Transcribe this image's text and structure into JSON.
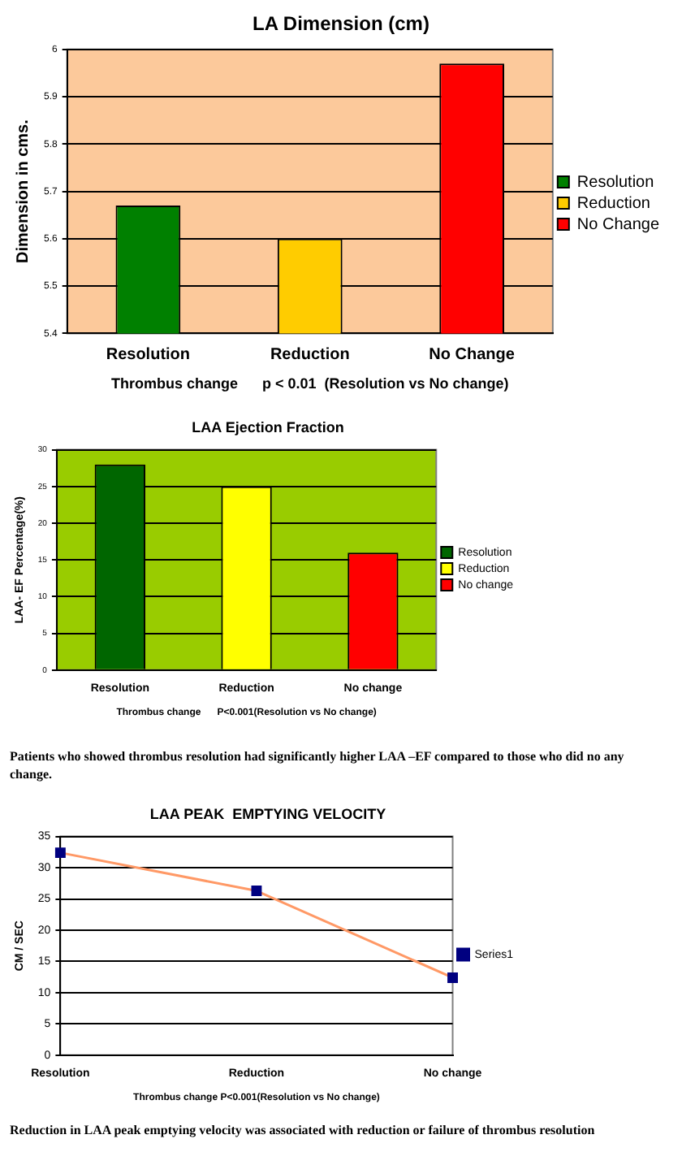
{
  "chart_data": [
    {
      "type": "bar",
      "title": "LA Dimension (cm)",
      "ylabel": "Dimension in cms.",
      "xlabel": "Thrombus change      p < 0.01  (Resolution vs No change)",
      "categories": [
        "Resolution",
        "Reduction",
        "No Change"
      ],
      "series": [
        {
          "name": "Resolution",
          "color": "#008000",
          "values": [
            5.67,
            null,
            null
          ]
        },
        {
          "name": "Reduction",
          "color": "#ffcc00",
          "values": [
            null,
            5.6,
            null
          ]
        },
        {
          "name": "No Change",
          "color": "#ff0000",
          "values": [
            null,
            null,
            5.97
          ]
        }
      ],
      "ylim": [
        5.4,
        6
      ],
      "yticks": [
        5.4,
        5.5,
        5.6,
        5.7,
        5.8,
        5.9,
        6
      ],
      "grid": "y",
      "legend": "right"
    },
    {
      "type": "bar",
      "title": "LAA Ejection Fraction",
      "ylabel": "LAA- EF Percentage(%)",
      "xlabel": "Thrombus change      P<0.001(Resolution vs No change)",
      "categories": [
        "Resolution",
        "Reduction",
        "No change"
      ],
      "series": [
        {
          "name": "Resolution",
          "color": "#006600",
          "values": [
            28,
            null,
            null
          ]
        },
        {
          "name": "Reduction",
          "color": "#ffff00",
          "values": [
            null,
            25,
            null
          ]
        },
        {
          "name": "No change",
          "color": "#ff0000",
          "values": [
            null,
            null,
            16
          ]
        }
      ],
      "ylim": [
        0,
        30
      ],
      "yticks": [
        0,
        5,
        10,
        15,
        20,
        25,
        30
      ],
      "grid": "y",
      "legend": "right",
      "annotations": [
        "Patients who showed thrombus resolution had significantly higher LAA –EF compared to those who did no any change."
      ]
    },
    {
      "type": "line",
      "title": "LAA PEAK  EMPTYING VELOCITY",
      "ylabel": "CM / SEC",
      "xlabel": "Thrombus change P<0.001(Resolution vs No change)",
      "categories": [
        "Resolution",
        "Reduction",
        "No change"
      ],
      "series": [
        {
          "name": "Series1",
          "color": "#ff9966",
          "values": [
            32.4,
            26.3,
            12.4
          ]
        }
      ],
      "ylim": [
        0,
        35
      ],
      "yticks": [
        0,
        5,
        10,
        15,
        20,
        25,
        30,
        35
      ],
      "grid": "y",
      "legend": "right",
      "marker": "square",
      "annotations": [
        "Reduction in LAA peak emptying velocity was associated with reduction or failure of thrombus resolution"
      ]
    }
  ]
}
